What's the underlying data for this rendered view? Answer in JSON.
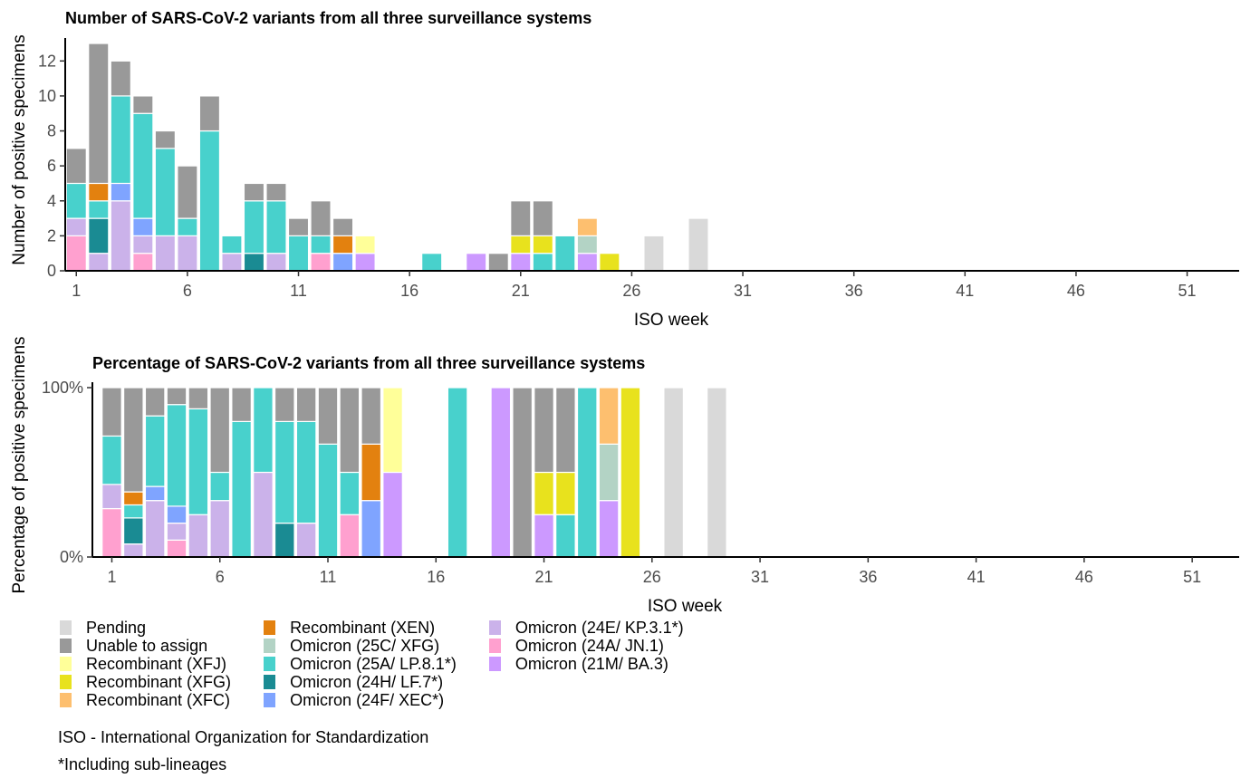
{
  "colors": {
    "Pending": "#d9d9d9",
    "Unable to assign": "#999999",
    "Recombinant (XFJ)": "#ffff99",
    "Recombinant (XFG)": "#e8e21d",
    "Recombinant (XFC)": "#fdbf6f",
    "Recombinant (XEN)": "#e3810f",
    "Omicron (25C/ XFG)": "#b3d3c5",
    "Omicron (25A/ LP.8.1*)": "#48d1cc",
    "Omicron (24H/ LF.7*)": "#1a8b93",
    "Omicron (24F/ XEC*)": "#7fa4ff",
    "Omicron (24E/ KP.3.1*)": "#cbb2ea",
    "Omicron (24A/ JN.1)": "#ffa0cf",
    "Omicron (21M/ BA.3)": "#cc99ff"
  },
  "legend": {
    "columns": [
      [
        "Pending",
        "Unable to assign",
        "Recombinant (XFJ)",
        "Recombinant (XFG)",
        "Recombinant (XFC)"
      ],
      [
        "Recombinant (XEN)",
        "Omicron (25C/ XFG)",
        "Omicron (25A/ LP.8.1*)",
        "Omicron (24H/ LF.7*)",
        "Omicron (24F/ XEC*)"
      ],
      [
        "Omicron (24E/ KP.3.1*)",
        "Omicron (24A/ JN.1)",
        "Omicron (21M/ BA.3)"
      ]
    ]
  },
  "footnotes": {
    "iso": "ISO - International Organization for Standardization",
    "lineages": "*Including sub-lineages"
  },
  "chart_data": [
    {
      "type": "bar",
      "stacked": true,
      "title": "Number of SARS-CoV-2 variants from all three surveillance systems",
      "xlabel": "ISO week",
      "ylabel": "Number of positive specimens",
      "xlim": [
        1,
        52
      ],
      "ylim": [
        0,
        13
      ],
      "xticks": [
        1,
        6,
        11,
        16,
        21,
        26,
        31,
        36,
        41,
        46,
        51
      ],
      "yticks": [
        0,
        2,
        4,
        6,
        8,
        10,
        12
      ],
      "grid": false,
      "weeks": [
        {
          "week": 1,
          "counts": {
            "Omicron (24A/ JN.1)": 2,
            "Omicron (24E/ KP.3.1*)": 1,
            "Omicron (25A/ LP.8.1*)": 2,
            "Unable to assign": 2
          }
        },
        {
          "week": 2,
          "counts": {
            "Omicron (24E/ KP.3.1*)": 1,
            "Omicron (24H/ LF.7*)": 2,
            "Omicron (25A/ LP.8.1*)": 1,
            "Recombinant (XEN)": 1,
            "Unable to assign": 8
          }
        },
        {
          "week": 3,
          "counts": {
            "Omicron (24E/ KP.3.1*)": 4,
            "Omicron (24F/ XEC*)": 1,
            "Omicron (25A/ LP.8.1*)": 5,
            "Unable to assign": 2
          }
        },
        {
          "week": 4,
          "counts": {
            "Omicron (24A/ JN.1)": 1,
            "Omicron (24E/ KP.3.1*)": 1,
            "Omicron (24F/ XEC*)": 1,
            "Omicron (25A/ LP.8.1*)": 6,
            "Unable to assign": 1
          }
        },
        {
          "week": 5,
          "counts": {
            "Omicron (24E/ KP.3.1*)": 2,
            "Omicron (25A/ LP.8.1*)": 5,
            "Unable to assign": 1
          }
        },
        {
          "week": 6,
          "counts": {
            "Omicron (24E/ KP.3.1*)": 2,
            "Omicron (25A/ LP.8.1*)": 1,
            "Unable to assign": 3
          }
        },
        {
          "week": 7,
          "counts": {
            "Omicron (25A/ LP.8.1*)": 8,
            "Unable to assign": 2
          }
        },
        {
          "week": 8,
          "counts": {
            "Omicron (24E/ KP.3.1*)": 1,
            "Omicron (25A/ LP.8.1*)": 1
          }
        },
        {
          "week": 9,
          "counts": {
            "Omicron (24H/ LF.7*)": 1,
            "Omicron (25A/ LP.8.1*)": 3,
            "Unable to assign": 1
          }
        },
        {
          "week": 10,
          "counts": {
            "Omicron (24E/ KP.3.1*)": 1,
            "Omicron (25A/ LP.8.1*)": 3,
            "Unable to assign": 1
          }
        },
        {
          "week": 11,
          "counts": {
            "Omicron (25A/ LP.8.1*)": 2,
            "Unable to assign": 1
          }
        },
        {
          "week": 12,
          "counts": {
            "Omicron (24A/ JN.1)": 1,
            "Omicron (25A/ LP.8.1*)": 1,
            "Unable to assign": 2
          }
        },
        {
          "week": 13,
          "counts": {
            "Omicron (24F/ XEC*)": 1,
            "Recombinant (XEN)": 1,
            "Unable to assign": 1
          }
        },
        {
          "week": 14,
          "counts": {
            "Omicron (21M/ BA.3)": 1,
            "Recombinant (XFJ)": 1
          }
        },
        {
          "week": 17,
          "counts": {
            "Omicron (25A/ LP.8.1*)": 1
          }
        },
        {
          "week": 19,
          "counts": {
            "Omicron (21M/ BA.3)": 1
          }
        },
        {
          "week": 20,
          "counts": {
            "Unable to assign": 1
          }
        },
        {
          "week": 21,
          "counts": {
            "Omicron (21M/ BA.3)": 1,
            "Recombinant (XFG)": 1,
            "Unable to assign": 2
          }
        },
        {
          "week": 22,
          "counts": {
            "Omicron (25A/ LP.8.1*)": 1,
            "Recombinant (XFG)": 1,
            "Unable to assign": 2
          }
        },
        {
          "week": 23,
          "counts": {
            "Omicron (25A/ LP.8.1*)": 2
          }
        },
        {
          "week": 24,
          "counts": {
            "Omicron (21M/ BA.3)": 1,
            "Omicron (25C/ XFG)": 1,
            "Recombinant (XFC)": 1
          }
        },
        {
          "week": 25,
          "counts": {
            "Recombinant (XFG)": 1
          }
        },
        {
          "week": 27,
          "counts": {
            "Pending": 2
          }
        },
        {
          "week": 29,
          "counts": {
            "Pending": 3
          }
        }
      ]
    },
    {
      "type": "bar",
      "stacked": true,
      "normalized": true,
      "title": "Percentage of SARS-CoV-2 variants from all three surveillance systems",
      "xlabel": "ISO week",
      "ylabel": "Percentage of positive specimens",
      "xlim": [
        1,
        52
      ],
      "ylim": [
        0,
        100
      ],
      "xticks": [
        1,
        6,
        11,
        16,
        21,
        26,
        31,
        36,
        41,
        46,
        51
      ],
      "yticks": [
        "0%",
        "100%"
      ],
      "grid": false,
      "weeks_from": "same counts as chart 1, each week shown as percentage of its total"
    }
  ]
}
